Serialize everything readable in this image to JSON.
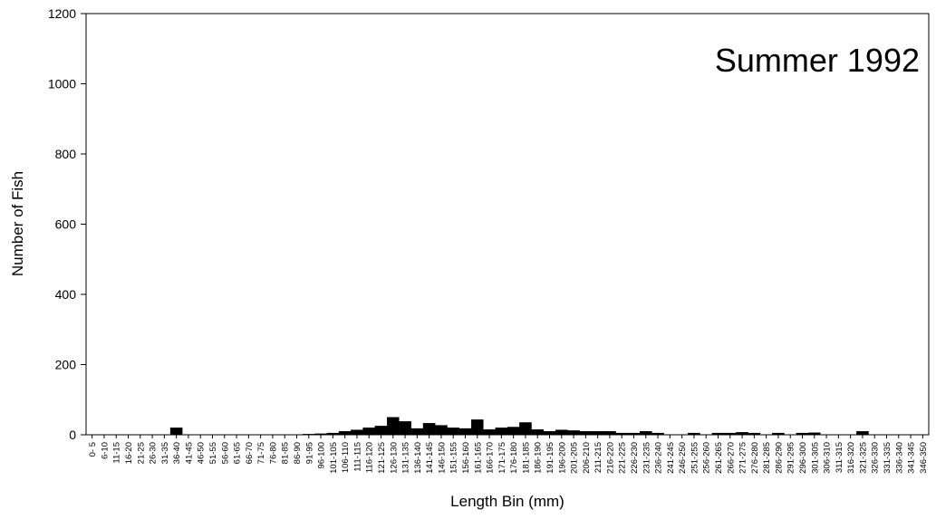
{
  "chart_data": {
    "type": "bar",
    "title": "",
    "annotation": "Summer 1992",
    "xlabel": "Length Bin (mm)",
    "ylabel": "Number of Fish",
    "ylim": [
      0,
      1200
    ],
    "yticks": [
      0,
      200,
      400,
      600,
      800,
      1000,
      1200
    ],
    "grid": false,
    "categories": [
      "0- 5",
      "6-10",
      "11-15",
      "16-20",
      "21-25",
      "26-30",
      "31-35",
      "36-40",
      "41-45",
      "46-50",
      "51-55",
      "56-60",
      "61-65",
      "66-70",
      "71-75",
      "76-80",
      "81-85",
      "86-90",
      "91-95",
      "96-100",
      "101-105",
      "106-110",
      "111-115",
      "116-120",
      "121-125",
      "126-130",
      "131-135",
      "136-140",
      "141-145",
      "146-150",
      "151-155",
      "156-160",
      "161-165",
      "166-170",
      "171-175",
      "176-180",
      "181-185",
      "186-190",
      "191-195",
      "196-200",
      "201-205",
      "206-210",
      "211-215",
      "216-220",
      "221-225",
      "226-230",
      "231-235",
      "236-240",
      "241-245",
      "246-250",
      "251-255",
      "256-260",
      "261-265",
      "266-270",
      "271-275",
      "276-280",
      "281-285",
      "286-290",
      "291-295",
      "296-300",
      "301-305",
      "306-310",
      "311-315",
      "316-320",
      "321-325",
      "326-330",
      "331-335",
      "336-340",
      "341-345",
      "346-350"
    ],
    "values": [
      0,
      0,
      0,
      0,
      0,
      0,
      0,
      20,
      0,
      0,
      0,
      0,
      0,
      0,
      0,
      0,
      0,
      0,
      2,
      3,
      5,
      10,
      14,
      20,
      25,
      50,
      38,
      18,
      33,
      27,
      20,
      18,
      43,
      15,
      20,
      22,
      35,
      15,
      10,
      14,
      12,
      10,
      10,
      10,
      5,
      5,
      10,
      5,
      0,
      0,
      5,
      0,
      5,
      5,
      7,
      5,
      0,
      5,
      0,
      5,
      6,
      0,
      0,
      0,
      10,
      0,
      0,
      0,
      0,
      0
    ],
    "bar_color": "#000000"
  }
}
